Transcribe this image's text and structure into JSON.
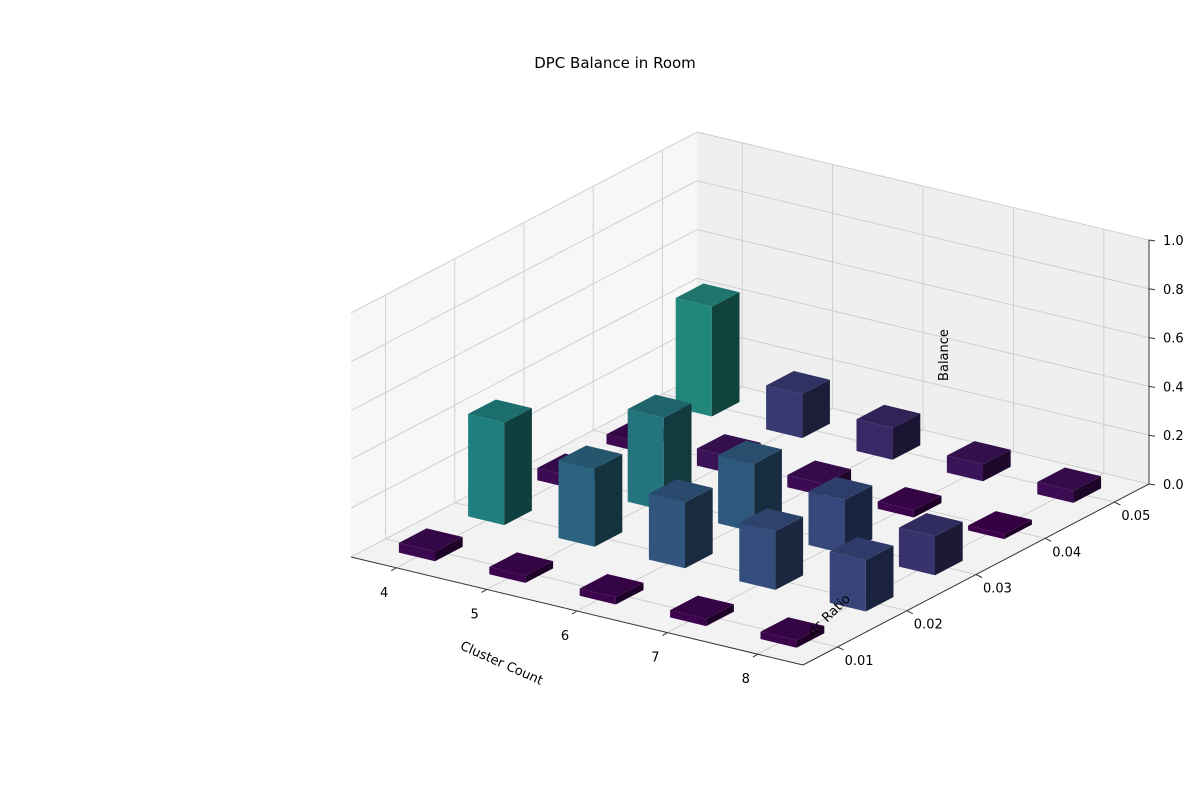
{
  "chart_data": {
    "type": "bar3d",
    "title": "DPC Balance in Room",
    "xlabel": "Cluster Count",
    "ylabel": "dc Ratio",
    "zlabel": "Balance",
    "x_categories": [
      "4",
      "5",
      "6",
      "7",
      "8"
    ],
    "y_categories": [
      "0.01",
      "0.02",
      "0.03",
      "0.04",
      "0.05"
    ],
    "z_ticks": [
      "0.0",
      "0.2",
      "0.4",
      "0.6",
      "0.8",
      "1.0"
    ],
    "zlim": [
      0,
      1
    ],
    "colormap": "viridis",
    "grid": true,
    "values": [
      [
        0.04,
        0.03,
        0.03,
        0.03,
        0.03
      ],
      [
        0.42,
        0.32,
        0.27,
        0.24,
        0.21
      ],
      [
        0.05,
        0.38,
        0.28,
        0.22,
        0.16
      ],
      [
        0.04,
        0.07,
        0.05,
        0.03,
        0.02
      ],
      [
        0.45,
        0.18,
        0.13,
        0.07,
        0.05
      ]
    ]
  }
}
